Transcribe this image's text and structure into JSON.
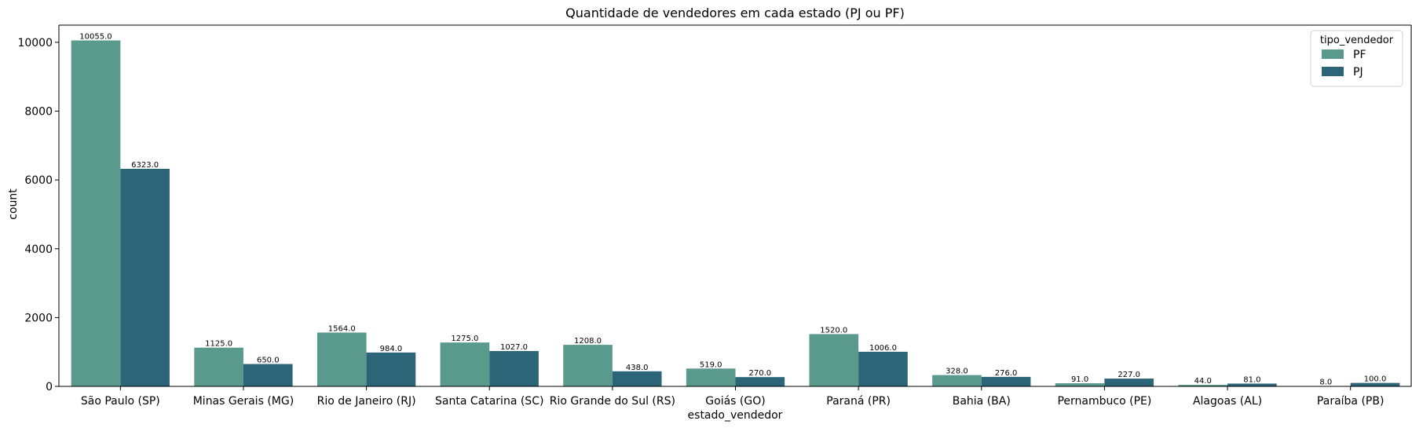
{
  "chart_data": {
    "type": "bar",
    "title": "Quantidade de vendedores em cada estado (PJ ou PF)",
    "xlabel": "estado_vendedor",
    "ylabel": "count",
    "ylim": [
      0,
      10500
    ],
    "yticks": [
      0,
      2000,
      4000,
      6000,
      8000,
      10000
    ],
    "categories": [
      "São Paulo (SP)",
      "Minas Gerais (MG)",
      "Rio de Janeiro (RJ)",
      "Santa Catarina (SC)",
      "Rio Grande do Sul (RS)",
      "Goiás (GO)",
      "Paraná (PR)",
      "Bahia (BA)",
      "Pernambuco (PE)",
      "Alagoas (AL)",
      "Paraíba (PB)"
    ],
    "series": [
      {
        "name": "PF",
        "color": "#5a9a8c",
        "values": [
          10055,
          1125,
          1564,
          1275,
          1208,
          519,
          1520,
          328,
          91,
          44,
          8
        ],
        "labels": [
          "10055.0",
          "1125.0",
          "1564.0",
          "1275.0",
          "1208.0",
          "519.0",
          "1520.0",
          "328.0",
          "91.0",
          "44.0",
          "8.0"
        ]
      },
      {
        "name": "PJ",
        "color": "#2c6578",
        "values": [
          6323,
          650,
          984,
          1027,
          438,
          270,
          1006,
          276,
          227,
          81,
          100
        ],
        "labels": [
          "6323.0",
          "650.0",
          "984.0",
          "1027.0",
          "438.0",
          "270.0",
          "1006.0",
          "276.0",
          "227.0",
          "81.0",
          "100.0"
        ]
      }
    ],
    "legend": {
      "title": "tipo_vendedor",
      "position": "top-right"
    },
    "grid": false
  }
}
